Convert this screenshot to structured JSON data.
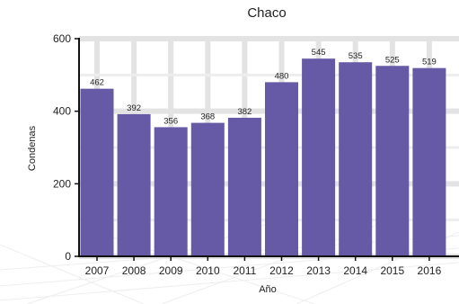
{
  "chart_data": {
    "type": "bar",
    "title": "Chaco",
    "xlabel": "Año",
    "ylabel": "Condenas",
    "categories": [
      "2007",
      "2008",
      "2009",
      "2010",
      "2011",
      "2012",
      "2013",
      "2014",
      "2015",
      "2016"
    ],
    "values": [
      462,
      392,
      356,
      368,
      382,
      480,
      545,
      535,
      525,
      519
    ],
    "data_labels": [
      "462",
      "392",
      "356",
      "368",
      "382",
      "480",
      "545",
      "535",
      "525",
      "519"
    ],
    "ylim": [
      0,
      600
    ],
    "yticks": [
      0,
      200,
      400,
      600
    ],
    "ytick_labels": [
      "0",
      "200",
      "400",
      "600"
    ],
    "grid": true,
    "legend": "none",
    "colors": {
      "bar": "#6659a6",
      "grid": "#e3e3e3",
      "axis": "#111111",
      "text": "#222222"
    }
  }
}
